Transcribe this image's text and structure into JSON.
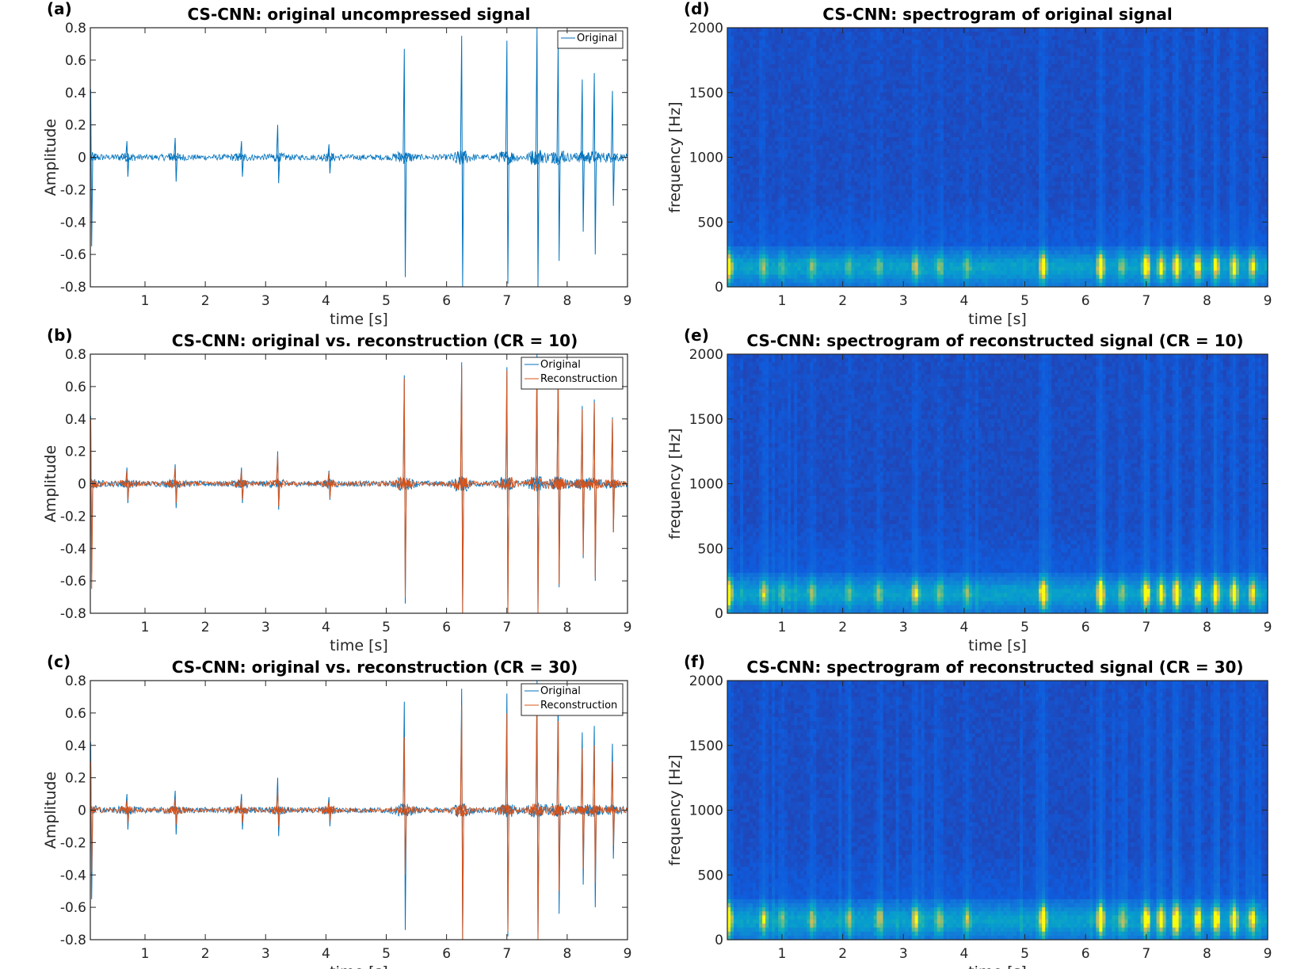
{
  "chart_data": [
    {
      "panel": "(a)",
      "type": "line",
      "title": "CS-CNN: original uncompressed signal",
      "xlabel": "time [s]",
      "ylabel": "Amplitude",
      "xlim": [
        0,
        9
      ],
      "ylim": [
        -0.8,
        0.8
      ],
      "xticks": [
        "1",
        "2",
        "3",
        "4",
        "5",
        "6",
        "7",
        "8",
        "9"
      ],
      "yticks": [
        "0.8",
        "0.6",
        "0.4",
        "0.2",
        "0",
        "-0.2",
        "-0.4",
        "-0.6",
        "-0.8"
      ],
      "legend": [
        "Original"
      ],
      "series": [
        {
          "name": "Original",
          "color": "#0072BD",
          "peaks": [
            [
              0.1,
              0.42,
              -0.55
            ],
            [
              0.7,
              0.1,
              -0.12
            ],
            [
              1.5,
              0.12,
              -0.15
            ],
            [
              2.6,
              0.1,
              -0.12
            ],
            [
              3.2,
              0.2,
              -0.16
            ],
            [
              4.05,
              0.08,
              -0.1
            ],
            [
              5.3,
              0.67,
              -0.74
            ],
            [
              6.25,
              0.75,
              -0.8
            ],
            [
              7.0,
              0.72,
              -0.78
            ],
            [
              7.5,
              0.8,
              -0.8
            ],
            [
              7.85,
              0.72,
              -0.64
            ],
            [
              8.25,
              0.48,
              -0.46
            ],
            [
              8.45,
              0.52,
              -0.6
            ],
            [
              8.75,
              0.41,
              -0.3
            ]
          ]
        }
      ]
    },
    {
      "panel": "(b)",
      "type": "line",
      "title": "CS-CNN: original vs. reconstruction (CR = 10)",
      "xlabel": "time [s]",
      "ylabel": "Amplitude",
      "xlim": [
        0,
        9
      ],
      "ylim": [
        -0.8,
        0.8
      ],
      "xticks": [
        "1",
        "2",
        "3",
        "4",
        "5",
        "6",
        "7",
        "8",
        "9"
      ],
      "yticks": [
        "0.8",
        "0.6",
        "0.4",
        "0.2",
        "0",
        "-0.2",
        "-0.4",
        "-0.6",
        "-0.8"
      ],
      "legend": [
        "Original",
        "Reconstruction"
      ],
      "series": [
        {
          "name": "Original",
          "color": "#0072BD",
          "peaks": [
            [
              0.1,
              0.42,
              -0.55
            ],
            [
              0.7,
              0.1,
              -0.12
            ],
            [
              1.5,
              0.12,
              -0.15
            ],
            [
              2.6,
              0.1,
              -0.12
            ],
            [
              3.2,
              0.2,
              -0.16
            ],
            [
              4.05,
              0.08,
              -0.1
            ],
            [
              5.3,
              0.67,
              -0.74
            ],
            [
              6.25,
              0.75,
              -0.8
            ],
            [
              7.0,
              0.72,
              -0.78
            ],
            [
              7.5,
              0.8,
              -0.8
            ],
            [
              7.85,
              0.72,
              -0.64
            ],
            [
              8.25,
              0.48,
              -0.46
            ],
            [
              8.45,
              0.52,
              -0.6
            ],
            [
              8.75,
              0.41,
              -0.3
            ]
          ]
        },
        {
          "name": "Reconstruction",
          "color": "#D95319",
          "peaks": [
            [
              0.1,
              0.4,
              -0.65
            ],
            [
              0.7,
              0.08,
              -0.1
            ],
            [
              1.5,
              0.1,
              -0.12
            ],
            [
              2.6,
              0.08,
              -0.1
            ],
            [
              3.2,
              0.18,
              -0.14
            ],
            [
              4.05,
              0.07,
              -0.09
            ],
            [
              5.3,
              0.65,
              -0.7
            ],
            [
              6.25,
              0.72,
              -0.8
            ],
            [
              7.0,
              0.7,
              -0.8
            ],
            [
              7.5,
              0.76,
              -0.8
            ],
            [
              7.85,
              0.7,
              -0.62
            ],
            [
              8.25,
              0.46,
              -0.44
            ],
            [
              8.45,
              0.5,
              -0.58
            ],
            [
              8.75,
              0.4,
              -0.3
            ]
          ]
        }
      ]
    },
    {
      "panel": "(c)",
      "type": "line",
      "title": "CS-CNN: original vs. reconstruction (CR = 30)",
      "xlabel": "time [s]",
      "ylabel": "Amplitude",
      "xlim": [
        0,
        9
      ],
      "ylim": [
        -0.8,
        0.8
      ],
      "xticks": [
        "1",
        "2",
        "3",
        "4",
        "5",
        "6",
        "7",
        "8",
        "9"
      ],
      "yticks": [
        "0.8",
        "0.6",
        "0.4",
        "0.2",
        "0",
        "-0.2",
        "-0.4",
        "-0.6",
        "-0.8"
      ],
      "legend": [
        "Original",
        "Reconstruction"
      ],
      "series": [
        {
          "name": "Original",
          "color": "#0072BD",
          "peaks": [
            [
              0.1,
              0.42,
              -0.55
            ],
            [
              0.7,
              0.1,
              -0.12
            ],
            [
              1.5,
              0.12,
              -0.15
            ],
            [
              2.6,
              0.1,
              -0.12
            ],
            [
              3.2,
              0.2,
              -0.16
            ],
            [
              4.05,
              0.08,
              -0.1
            ],
            [
              5.3,
              0.67,
              -0.74
            ],
            [
              6.25,
              0.75,
              -0.8
            ],
            [
              7.0,
              0.72,
              -0.78
            ],
            [
              7.5,
              0.8,
              -0.8
            ],
            [
              7.85,
              0.72,
              -0.64
            ],
            [
              8.25,
              0.48,
              -0.46
            ],
            [
              8.45,
              0.52,
              -0.6
            ],
            [
              8.75,
              0.41,
              -0.3
            ]
          ]
        },
        {
          "name": "Reconstruction",
          "color": "#D95319",
          "peaks": [
            [
              0.1,
              0.3,
              -0.38
            ],
            [
              0.7,
              0.06,
              -0.08
            ],
            [
              1.5,
              0.07,
              -0.09
            ],
            [
              2.6,
              0.06,
              -0.08
            ],
            [
              3.2,
              0.12,
              -0.1
            ],
            [
              4.05,
              0.05,
              -0.07
            ],
            [
              5.3,
              0.45,
              -0.4
            ],
            [
              6.25,
              0.65,
              -0.8
            ],
            [
              7.0,
              0.6,
              -0.75
            ],
            [
              7.5,
              0.68,
              -0.8
            ],
            [
              7.85,
              0.55,
              -0.5
            ],
            [
              8.25,
              0.38,
              -0.36
            ],
            [
              8.45,
              0.4,
              -0.45
            ],
            [
              8.75,
              0.3,
              -0.22
            ]
          ]
        }
      ]
    },
    {
      "panel": "(d)",
      "type": "heatmap",
      "title": "CS-CNN: spectrogram of original signal",
      "xlabel": "time [s]",
      "ylabel": "frequency [Hz]",
      "xlim": [
        0,
        9
      ],
      "ylim": [
        0,
        2000
      ],
      "xticks": [
        "1",
        "2",
        "3",
        "4",
        "5",
        "6",
        "7",
        "8",
        "9"
      ],
      "yticks": [
        "2000",
        "1500",
        "1000",
        "500",
        "0"
      ],
      "events": [
        [
          0.12,
          1.0
        ],
        [
          0.7,
          0.45
        ],
        [
          1.0,
          0.3
        ],
        [
          1.5,
          0.4
        ],
        [
          2.1,
          0.35
        ],
        [
          2.6,
          0.4
        ],
        [
          3.2,
          0.6
        ],
        [
          3.6,
          0.4
        ],
        [
          4.05,
          0.35
        ],
        [
          5.3,
          0.95
        ],
        [
          6.25,
          1.0
        ],
        [
          6.6,
          0.45
        ],
        [
          7.0,
          0.95
        ],
        [
          7.25,
          0.7
        ],
        [
          7.5,
          0.95
        ],
        [
          7.85,
          0.85
        ],
        [
          8.15,
          0.75
        ],
        [
          8.45,
          0.75
        ],
        [
          8.75,
          0.7
        ]
      ],
      "vertical_streaks": 0.35
    },
    {
      "panel": "(e)",
      "type": "heatmap",
      "title": "CS-CNN: spectrogram of reconstructed signal (CR = 10)",
      "xlabel": "time [s]",
      "ylabel": "frequency [Hz]",
      "xlim": [
        0,
        9
      ],
      "ylim": [
        0,
        2000
      ],
      "xticks": [
        "1",
        "2",
        "3",
        "4",
        "5",
        "6",
        "7",
        "8",
        "9"
      ],
      "yticks": [
        "2000",
        "1500",
        "1000",
        "500",
        "0"
      ],
      "events": [
        [
          0.12,
          1.0
        ],
        [
          0.7,
          0.5
        ],
        [
          1.0,
          0.35
        ],
        [
          1.5,
          0.45
        ],
        [
          2.1,
          0.35
        ],
        [
          2.6,
          0.45
        ],
        [
          3.2,
          0.65
        ],
        [
          3.6,
          0.4
        ],
        [
          4.05,
          0.4
        ],
        [
          5.3,
          0.95
        ],
        [
          6.25,
          1.0
        ],
        [
          6.6,
          0.45
        ],
        [
          7.0,
          0.95
        ],
        [
          7.25,
          0.7
        ],
        [
          7.5,
          0.95
        ],
        [
          7.85,
          0.85
        ],
        [
          8.15,
          0.8
        ],
        [
          8.45,
          0.8
        ],
        [
          8.75,
          0.7
        ]
      ],
      "vertical_streaks": 0.7
    },
    {
      "panel": "(f)",
      "type": "heatmap",
      "title": "CS-CNN: spectrogram of reconstructed signal (CR = 30)",
      "xlabel": "time [s]",
      "ylabel": "frequency [Hz]",
      "xlim": [
        0,
        9
      ],
      "ylim": [
        0,
        2000
      ],
      "xticks": [
        "1",
        "2",
        "3",
        "4",
        "5",
        "6",
        "7",
        "8",
        "9"
      ],
      "yticks": [
        "2000",
        "1500",
        "1000",
        "500",
        "0"
      ],
      "events": [
        [
          0.12,
          1.0
        ],
        [
          0.7,
          0.55
        ],
        [
          1.0,
          0.4
        ],
        [
          1.5,
          0.5
        ],
        [
          2.1,
          0.4
        ],
        [
          2.6,
          0.5
        ],
        [
          3.2,
          0.7
        ],
        [
          3.6,
          0.45
        ],
        [
          4.05,
          0.45
        ],
        [
          5.3,
          0.95
        ],
        [
          6.25,
          1.0
        ],
        [
          6.6,
          0.5
        ],
        [
          7.0,
          0.95
        ],
        [
          7.25,
          0.75
        ],
        [
          7.5,
          0.95
        ],
        [
          7.85,
          0.85
        ],
        [
          8.15,
          0.8
        ],
        [
          8.45,
          0.8
        ],
        [
          8.75,
          0.75
        ]
      ],
      "vertical_streaks": 0.8
    }
  ]
}
